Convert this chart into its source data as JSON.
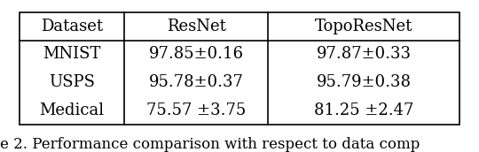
{
  "col_headers": [
    "Dataset",
    "ResNet",
    "TopoResNet"
  ],
  "rows": [
    [
      "MNIST",
      "97.85±0.16",
      "97.87±0.33"
    ],
    [
      "USPS",
      "95.78±0.37",
      "95.79±0.38"
    ],
    [
      "Medical",
      "75.57 ±3.75",
      "81.25 ±2.47"
    ]
  ],
  "caption": "e 2. Performance comparison with respect to data comp",
  "background_color": "#ffffff",
  "text_color": "#000000",
  "font_size": 13,
  "caption_font_size": 12,
  "figsize": [
    5.4,
    1.72
  ],
  "dpi": 100
}
